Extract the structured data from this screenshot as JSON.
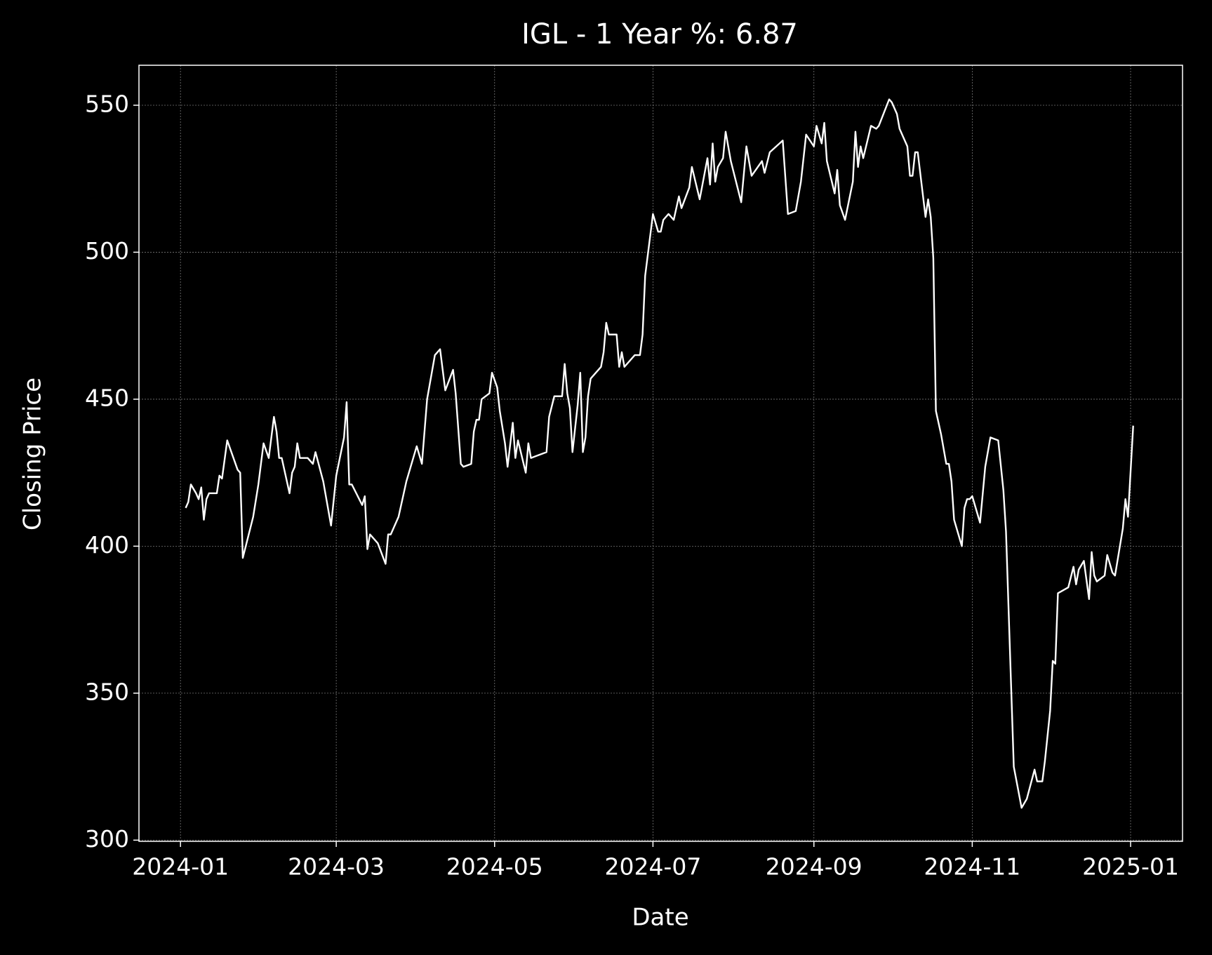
{
  "chart_data": {
    "type": "line",
    "title": "IGL - 1 Year %: 6.87",
    "x_label": "Date",
    "y_label": "Closing Price",
    "color": "#ffffff",
    "grid": true,
    "x": [
      2,
      3,
      4,
      6,
      7,
      8,
      9,
      10,
      11,
      14,
      15,
      16,
      18,
      22,
      23,
      24,
      28,
      30,
      32,
      34,
      36,
      37,
      38,
      39,
      42,
      43,
      44,
      45,
      46,
      49,
      51,
      52,
      55,
      58,
      60,
      63,
      64,
      65,
      66,
      70,
      71,
      72,
      73,
      76,
      79,
      80,
      81,
      84,
      87,
      91,
      93,
      95,
      98,
      100,
      102,
      105,
      106,
      108,
      109,
      112,
      113,
      114,
      115,
      116,
      119,
      120,
      122,
      123,
      125,
      126,
      128,
      129,
      130,
      133,
      134,
      135,
      138,
      141,
      142,
      144,
      147,
      148,
      149,
      150,
      151,
      153,
      154,
      155,
      156,
      157,
      158,
      162,
      163,
      164,
      165,
      168,
      169,
      170,
      171,
      175,
      177,
      178,
      179,
      182,
      184,
      185,
      186,
      188,
      190,
      192,
      193,
      196,
      197,
      200,
      203,
      204,
      205,
      206,
      207,
      209,
      210,
      212,
      216,
      218,
      220,
      224,
      225,
      227,
      232,
      234,
      237,
      239,
      241,
      244,
      245,
      247,
      248,
      249,
      252,
      253,
      254,
      256,
      259,
      260,
      261,
      262,
      263,
      266,
      268,
      269,
      273,
      274,
      276,
      277,
      280,
      281,
      282,
      283,
      284,
      287,
      288,
      289,
      290,
      291,
      293,
      295,
      296,
      297,
      298,
      301,
      302,
      303,
      304,
      305,
      308,
      310,
      312,
      315,
      317,
      318,
      321,
      324,
      326,
      329,
      330,
      332,
      333,
      335,
      336,
      337,
      338,
      342,
      344,
      345,
      346,
      348,
      350,
      351,
      352,
      353,
      356,
      357,
      359,
      360,
      363,
      364,
      365,
      367
    ],
    "values": [
      413,
      415,
      421,
      418,
      416,
      420,
      409,
      416,
      418,
      418,
      424,
      423,
      436,
      426,
      425,
      396,
      410,
      421,
      435,
      430,
      444,
      439,
      430,
      430,
      418,
      425,
      427,
      435,
      430,
      430,
      428,
      432,
      422,
      407,
      424,
      437,
      449,
      421,
      421,
      414,
      417,
      399,
      404,
      401,
      394,
      404,
      404,
      410,
      422,
      434,
      428,
      450,
      465,
      467,
      453,
      460,
      452,
      428,
      427,
      428,
      439,
      443,
      443,
      450,
      452,
      459,
      454,
      446,
      435,
      427,
      442,
      430,
      436,
      425,
      435,
      430,
      431,
      432,
      444,
      451,
      451,
      462,
      452,
      447,
      432,
      448,
      459,
      432,
      437,
      451,
      457,
      461,
      466,
      476,
      472,
      472,
      461,
      466,
      461,
      465,
      465,
      472,
      492,
      513,
      507,
      507,
      511,
      513,
      511,
      519,
      515,
      522,
      529,
      518,
      532,
      523,
      537,
      524,
      529,
      532,
      541,
      531,
      517,
      536,
      526,
      531,
      527,
      534,
      538,
      513,
      514,
      524,
      540,
      536,
      543,
      537,
      544,
      531,
      520,
      528,
      516,
      511,
      524,
      541,
      529,
      536,
      532,
      543,
      542,
      543,
      552,
      551,
      547,
      542,
      536,
      526,
      526,
      534,
      534,
      512,
      518,
      512,
      498,
      446,
      438,
      428,
      428,
      422,
      409,
      400,
      413,
      416,
      416,
      417,
      408,
      427,
      437,
      436,
      419,
      405,
      325,
      311,
      314,
      324,
      320,
      320,
      327,
      344,
      361,
      360,
      384,
      386,
      393,
      387,
      392,
      395,
      382,
      398,
      390,
      388,
      390,
      397,
      391,
      390,
      406,
      416,
      410,
      441
    ],
    "xlim": [
      -16,
      386
    ],
    "xticks": [
      {
        "value": 0,
        "label": "2024-01"
      },
      {
        "value": 60,
        "label": "2024-03"
      },
      {
        "value": 121,
        "label": "2024-05"
      },
      {
        "value": 182,
        "label": "2024-07"
      },
      {
        "value": 244,
        "label": "2024-09"
      },
      {
        "value": 305,
        "label": "2024-11"
      },
      {
        "value": 366,
        "label": "2025-01"
      }
    ],
    "ylim": [
      299.6,
      563.6
    ],
    "yticks": [
      300,
      350,
      400,
      450,
      500,
      550
    ]
  }
}
